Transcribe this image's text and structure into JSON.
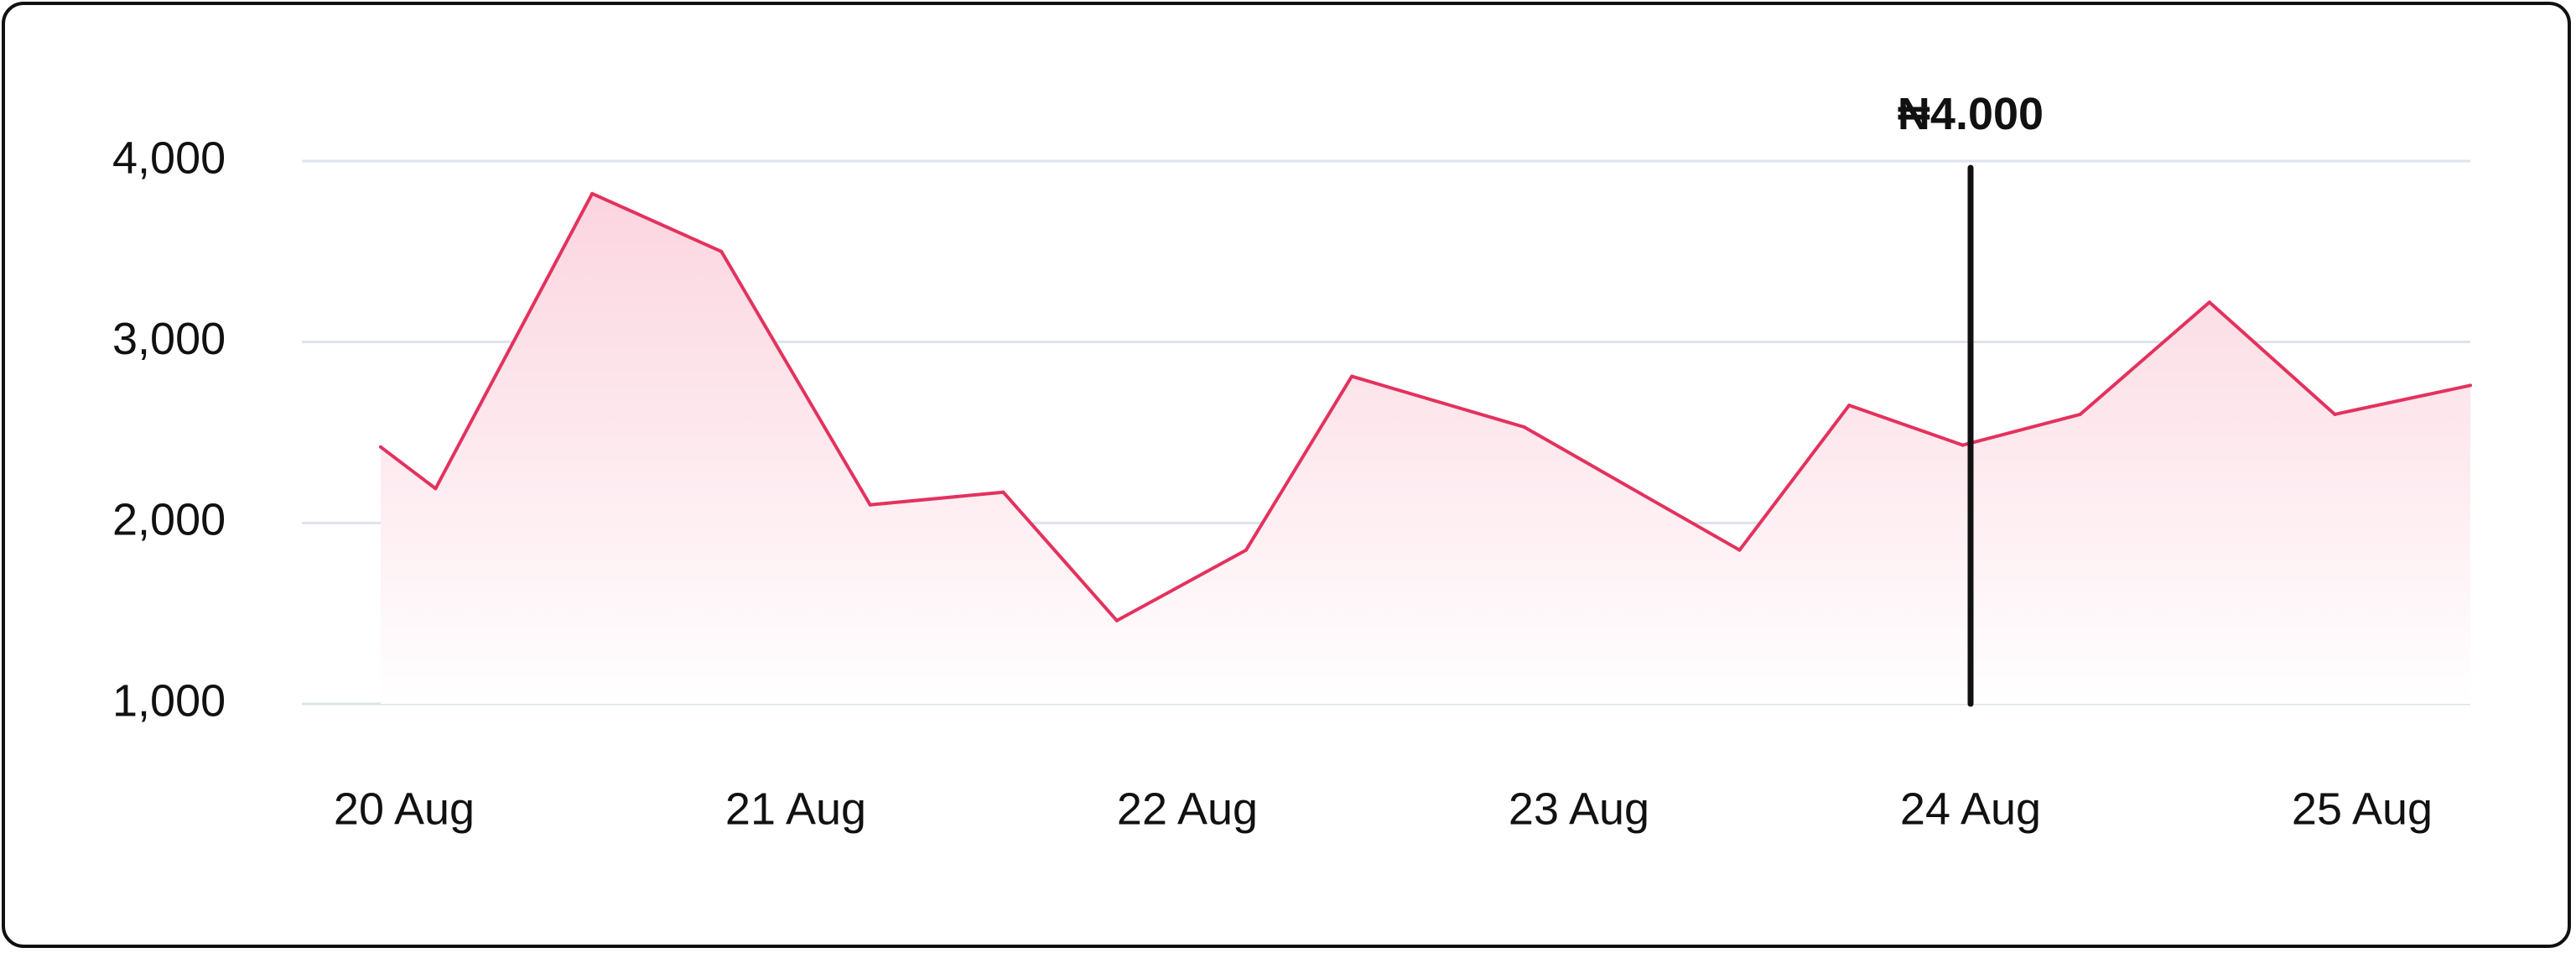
{
  "chart_data": {
    "type": "area",
    "title": "",
    "xlabel": "",
    "ylabel": "",
    "ylim": [
      1000,
      4000
    ],
    "yticks": [
      "4,000",
      "3,000",
      "2,000",
      "1,000"
    ],
    "xticks": [
      "20 Aug",
      "21 Aug",
      "22 Aug",
      "23 Aug",
      "24 Aug",
      "25 Aug"
    ],
    "xlim": [
      -0.06,
      5.47
    ],
    "grid": true,
    "x": [
      -0.06,
      0.08,
      0.48,
      0.81,
      1.19,
      1.53,
      1.82,
      2.15,
      2.42,
      2.86,
      3.41,
      3.69,
      3.98,
      4.28,
      4.61,
      4.93,
      5.47
    ],
    "series": [
      {
        "values": [
          2420,
          2190,
          3820,
          3500,
          2100,
          2170,
          1460,
          1850,
          2810,
          2530,
          1850,
          2650,
          2430,
          2600,
          3220,
          2600,
          2760
        ]
      }
    ],
    "marker": {
      "x": 4.0,
      "label": "₦4.000"
    },
    "colors": {
      "line": "#e3325e",
      "fill_top": "#fbd3de",
      "fill_bottom": "#ffffff",
      "grid": "#dde3ec",
      "marker": "#111111",
      "text": "#111111",
      "border": "#111111"
    }
  }
}
